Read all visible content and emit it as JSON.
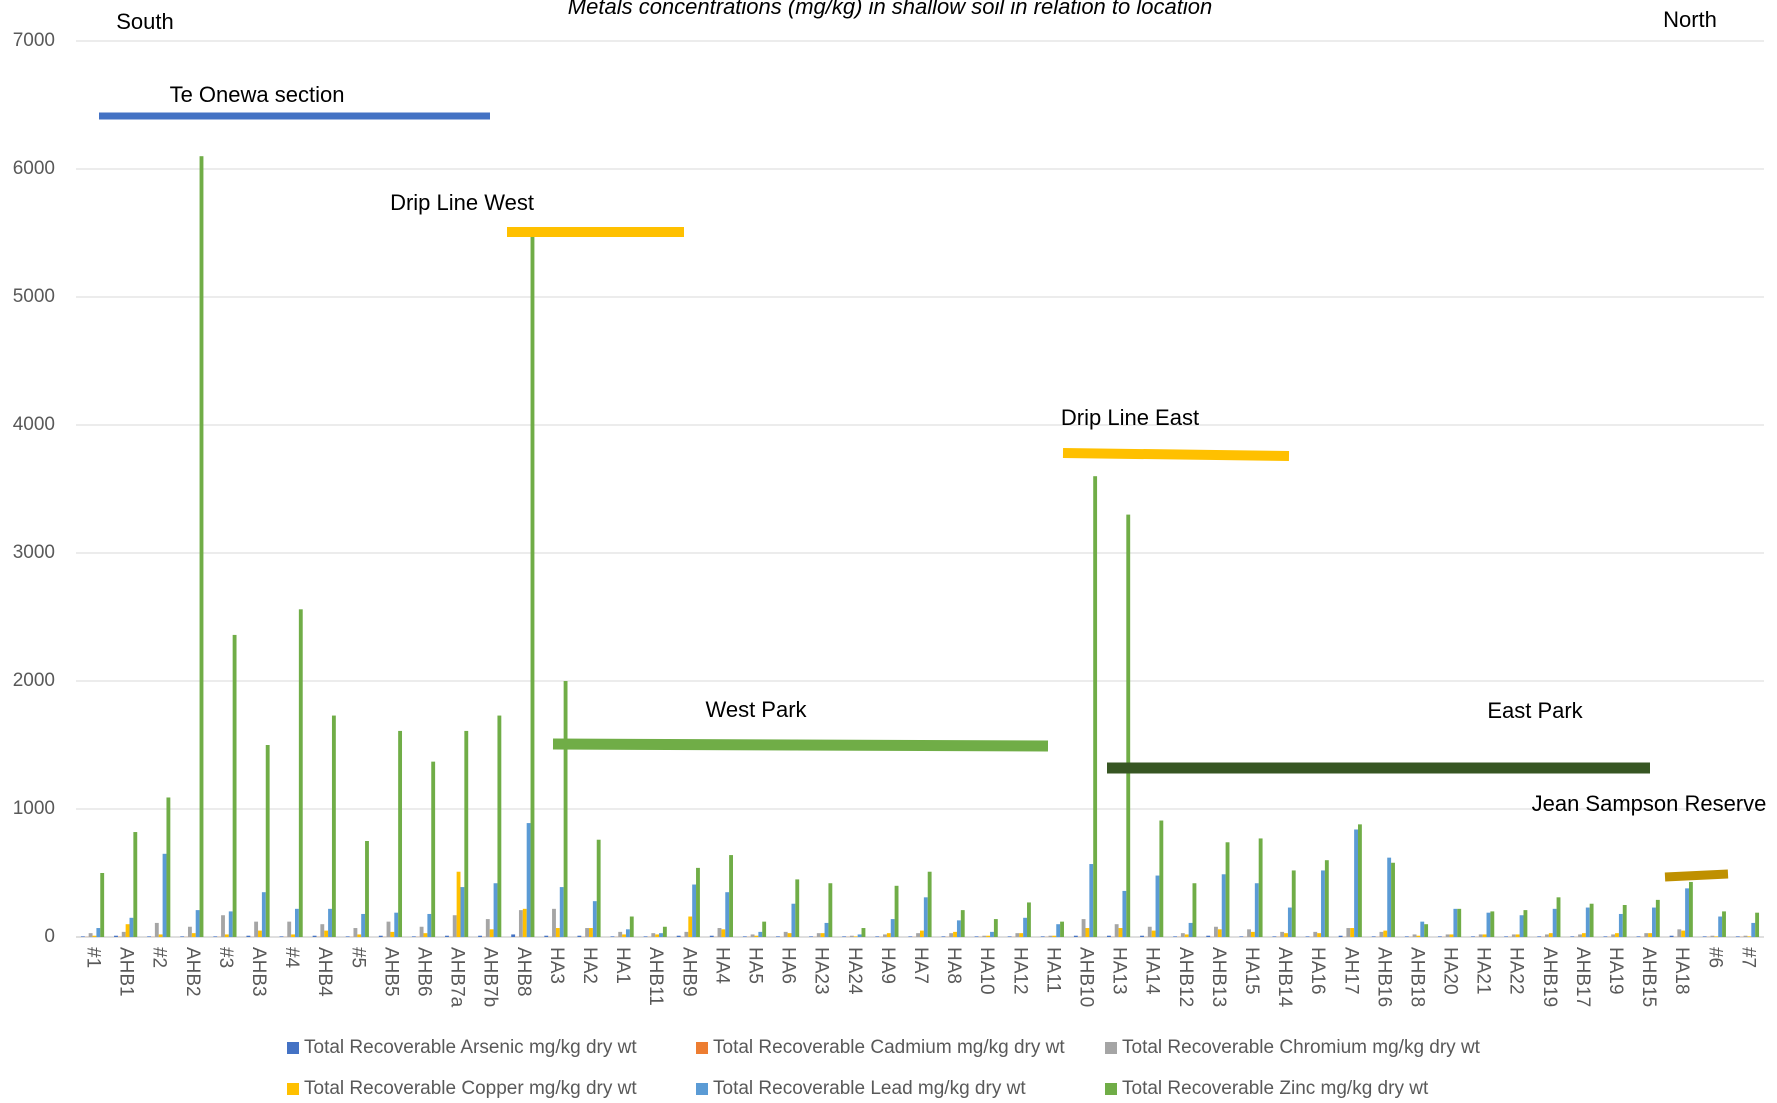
{
  "chart_data": {
    "type": "bar",
    "title": "Metals concentrations (mg/kg) in shallow soil in relation to location",
    "categories": [
      "#1",
      "AHB1",
      "#2",
      "AHB2",
      "#3",
      "AHB3",
      "#4",
      "AHB4",
      "#5",
      "AHB5",
      "AHB6",
      "AHB7a",
      "AHB7b",
      "AHB8",
      "HA3",
      "HA2",
      "HA1",
      "AHB11",
      "AHB9",
      "HA4",
      "HA5",
      "HA6",
      "HA23",
      "HA24",
      "HA9",
      "HA7",
      "HA8",
      "HA10",
      "HA12",
      "HA11",
      "AHB10",
      "HA13",
      "HA14",
      "AHB12",
      "AHB13",
      "HA15",
      "AHB14",
      "HA16",
      "AH17",
      "AHB16",
      "AHB18",
      "HA20",
      "HA21",
      "HA22",
      "AHB19",
      "AHB17",
      "HA19",
      "AHB15",
      "HA18",
      "#6",
      "#7"
    ],
    "series": [
      {
        "name": "Total Recoverable Arsenic mg/kg dry wt",
        "color": "#4472c4",
        "values": [
          5,
          10,
          5,
          5,
          5,
          10,
          5,
          10,
          5,
          10,
          5,
          10,
          10,
          20,
          10,
          10,
          5,
          5,
          10,
          10,
          5,
          5,
          5,
          5,
          5,
          5,
          5,
          5,
          5,
          5,
          10,
          10,
          10,
          5,
          10,
          5,
          5,
          5,
          10,
          5,
          5,
          5,
          5,
          5,
          5,
          5,
          5,
          5,
          10,
          5,
          5
        ]
      },
      {
        "name": "Total Recoverable Cadmium mg/kg dry wt",
        "color": "#ed7d31",
        "values": [
          1,
          2,
          1,
          1,
          1,
          1,
          1,
          1,
          1,
          1,
          1,
          1,
          1,
          1,
          1,
          1,
          1,
          1,
          1,
          1,
          1,
          1,
          1,
          1,
          1,
          1,
          1,
          1,
          1,
          1,
          1,
          1,
          1,
          1,
          1,
          1,
          1,
          1,
          1,
          1,
          1,
          1,
          1,
          1,
          1,
          1,
          1,
          1,
          1,
          1,
          1
        ]
      },
      {
        "name": "Total Recoverable Chromium mg/kg dry wt",
        "color": "#a5a5a5",
        "values": [
          30,
          40,
          110,
          80,
          170,
          120,
          120,
          100,
          70,
          120,
          80,
          170,
          140,
          210,
          220,
          70,
          40,
          30,
          40,
          70,
          20,
          40,
          30,
          10,
          20,
          30,
          30,
          10,
          30,
          10,
          140,
          100,
          80,
          30,
          80,
          60,
          40,
          40,
          70,
          40,
          20,
          20,
          20,
          20,
          20,
          20,
          20,
          30,
          60,
          10,
          10
        ]
      },
      {
        "name": "Total Recoverable Copper mg/kg dry wt",
        "color": "#ffc000",
        "values": [
          10,
          100,
          20,
          30,
          20,
          50,
          20,
          50,
          20,
          40,
          30,
          510,
          60,
          220,
          70,
          70,
          20,
          20,
          160,
          60,
          10,
          30,
          30,
          5,
          30,
          50,
          40,
          10,
          30,
          10,
          70,
          70,
          50,
          20,
          60,
          40,
          30,
          30,
          70,
          50,
          10,
          20,
          20,
          20,
          30,
          30,
          30,
          30,
          50,
          5,
          5
        ]
      },
      {
        "name": "Total Recoverable Lead mg/kg dry wt",
        "color": "#5b9bd5",
        "values": [
          70,
          150,
          650,
          210,
          200,
          350,
          220,
          220,
          180,
          190,
          180,
          390,
          420,
          890,
          390,
          280,
          60,
          30,
          410,
          350,
          40,
          260,
          110,
          20,
          140,
          310,
          130,
          40,
          150,
          100,
          570,
          360,
          480,
          110,
          490,
          420,
          230,
          520,
          840,
          620,
          120,
          220,
          190,
          170,
          220,
          230,
          180,
          230,
          380,
          160,
          110
        ]
      },
      {
        "name": "Total Recoverable Zinc mg/kg dry wt",
        "color": "#70ad47",
        "values": [
          500,
          820,
          1090,
          6100,
          2360,
          1500,
          2560,
          1730,
          750,
          1610,
          1370,
          1610,
          1730,
          5500,
          2000,
          760,
          160,
          80,
          540,
          640,
          120,
          450,
          420,
          70,
          400,
          510,
          210,
          140,
          270,
          120,
          3600,
          3300,
          910,
          420,
          740,
          770,
          520,
          600,
          880,
          580,
          100,
          220,
          200,
          210,
          310,
          260,
          250,
          290,
          430,
          200,
          190
        ]
      }
    ],
    "ylim": [
      0,
      7000
    ],
    "yticks": [
      0,
      1000,
      2000,
      3000,
      4000,
      5000,
      6000,
      7000
    ],
    "grid": true,
    "ends": [
      "South",
      "North"
    ],
    "annotations": [
      {
        "text": "Te Onewa section",
        "color": "#4472c4"
      },
      {
        "text": "Drip Line West",
        "color": "#ffc000"
      },
      {
        "text": "Drip Line East",
        "color": "#ffc000"
      },
      {
        "text": "West Park",
        "color": "#70ad47"
      },
      {
        "text": "East Park",
        "color": "#375623"
      },
      {
        "text": "Jean Sampson Reserve",
        "color": "#bf9000"
      }
    ]
  }
}
